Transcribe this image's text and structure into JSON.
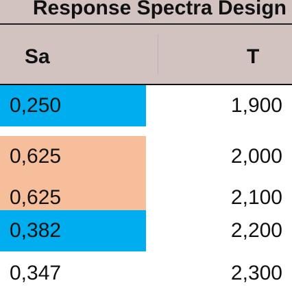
{
  "table": {
    "title": "Response Spectra Design",
    "columns": {
      "sa": "Sa",
      "t": "T"
    },
    "rows": [
      {
        "sa": "0,250",
        "t": "1,900",
        "highlight": "#00aeef"
      },
      {
        "sa": "0,625",
        "t": "2,000",
        "highlight": "#f7be9c"
      },
      {
        "sa": "0,625",
        "t": "2,100",
        "highlight": "#f7be9c"
      },
      {
        "sa": "0,382",
        "t": "2,200",
        "highlight": "#00aeef"
      },
      {
        "sa": "0,347",
        "t": "2,300",
        "highlight": ""
      }
    ]
  },
  "colors": {
    "header_background": "#d2c3c1",
    "blue_highlight": "#00aeef",
    "peach_highlight": "#f7be9c"
  }
}
